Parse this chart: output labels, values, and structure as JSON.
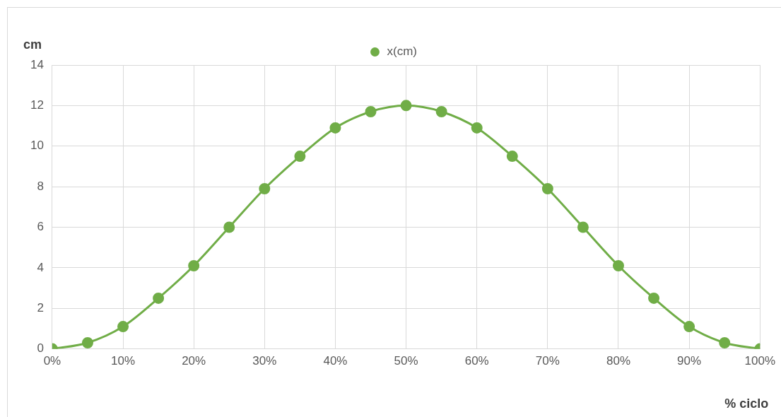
{
  "chart_data": {
    "type": "line",
    "xlabel": "% ciclo",
    "ylabel": "cm",
    "x": [
      0,
      5,
      10,
      15,
      20,
      25,
      30,
      35,
      40,
      45,
      50,
      55,
      60,
      65,
      70,
      75,
      80,
      85,
      90,
      95,
      100
    ],
    "series": [
      {
        "name": "x(cm)",
        "color": "#70ad47",
        "values": [
          0,
          0.3,
          1.1,
          2.5,
          4.1,
          6,
          7.9,
          9.5,
          10.9,
          11.7,
          12,
          11.7,
          10.9,
          9.5,
          7.9,
          6,
          4.1,
          2.5,
          1.1,
          0.3,
          0
        ]
      }
    ],
    "xlim": [
      0,
      100
    ],
    "xticks": [
      {
        "value": 0,
        "label": "0%"
      },
      {
        "value": 10,
        "label": "10%"
      },
      {
        "value": 20,
        "label": "20%"
      },
      {
        "value": 30,
        "label": "30%"
      },
      {
        "value": 40,
        "label": "40%"
      },
      {
        "value": 50,
        "label": "50%"
      },
      {
        "value": 60,
        "label": "60%"
      },
      {
        "value": 70,
        "label": "70%"
      },
      {
        "value": 80,
        "label": "80%"
      },
      {
        "value": 90,
        "label": "90%"
      },
      {
        "value": 100,
        "label": "100%"
      }
    ],
    "ylim": [
      0,
      14
    ],
    "yticks": [
      0,
      2,
      4,
      6,
      8,
      10,
      12,
      14
    ],
    "grid": true,
    "legend": "top",
    "marker": "circle",
    "line_style": "solid"
  }
}
